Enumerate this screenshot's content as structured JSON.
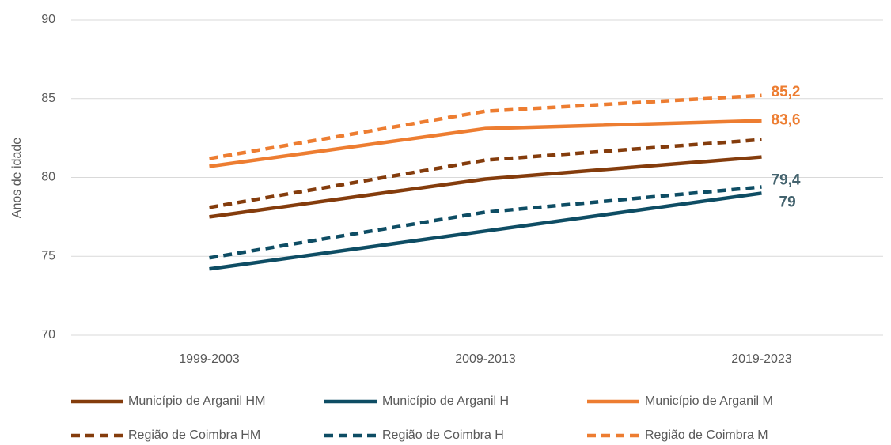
{
  "chart_data": {
    "type": "line",
    "y_label": "Anos de idade",
    "categories": [
      "1999-2003",
      "2009-2013",
      "2019-2023"
    ],
    "ylim": [
      70,
      90
    ],
    "yticks": [
      70,
      75,
      80,
      85,
      90
    ],
    "grid": true,
    "series": [
      {
        "name": "Município de Arganil HM",
        "color": "#843c0c",
        "dashed": false,
        "values": [
          77.5,
          79.9,
          81.3
        ]
      },
      {
        "name": "Município de Arganil H",
        "color": "#0e4d64",
        "dashed": false,
        "values": [
          74.2,
          76.6,
          79
        ]
      },
      {
        "name": "Município de Arganil M",
        "color": "#ed7d31",
        "dashed": false,
        "values": [
          80.7,
          83.1,
          83.6
        ],
        "value_labels": [
          null,
          null,
          "83,6"
        ]
      },
      {
        "name": "Região de Coimbra HM",
        "color": "#843c0c",
        "dashed": true,
        "values": [
          78.1,
          81.1,
          82.4
        ]
      },
      {
        "name": "Região de Coimbra H",
        "color": "#0e4d64",
        "dashed": true,
        "values": [
          74.9,
          77.8,
          79.4
        ],
        "value_labels": [
          null,
          null,
          "79,4"
        ]
      },
      {
        "name": "Região de Coimbra M",
        "color": "#ed7d31",
        "dashed": true,
        "values": [
          81.2,
          84.2,
          85.2
        ],
        "value_labels": [
          null,
          null,
          "85,2"
        ]
      }
    ],
    "label_color_h": "#44636e"
  }
}
